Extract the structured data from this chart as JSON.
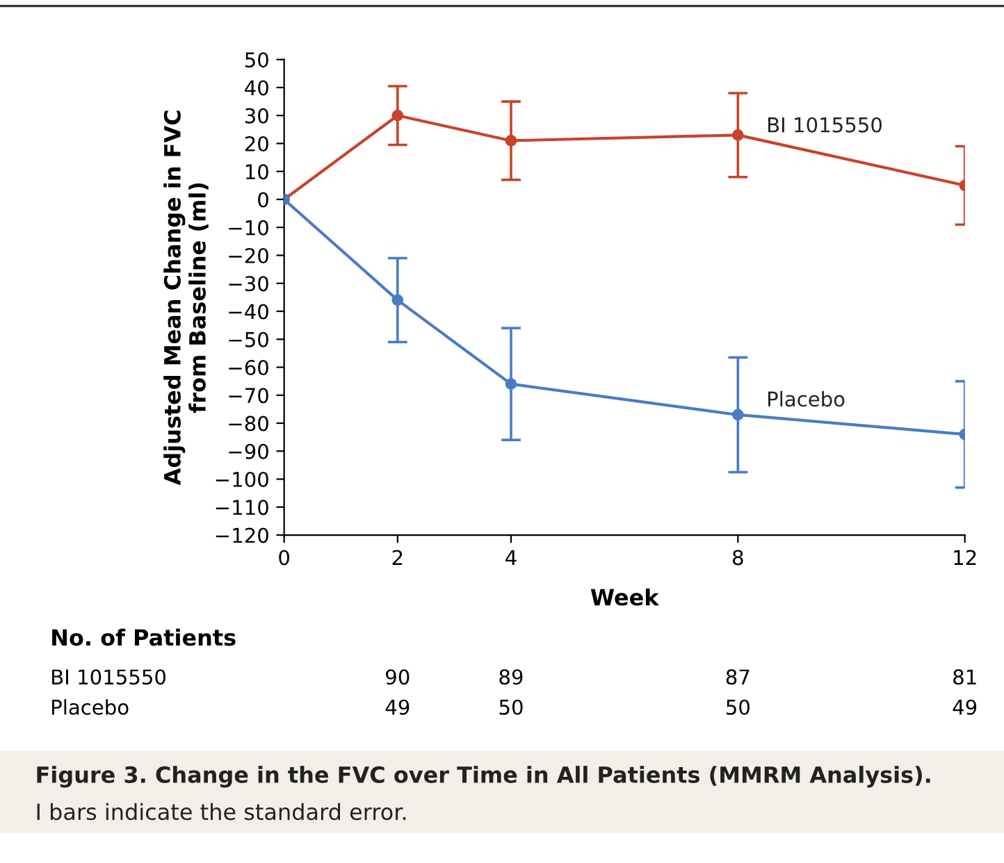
{
  "chart_data": {
    "type": "line",
    "title": "Figure 3. Change in the FVC over Time in All Patients (MMRM Analysis).",
    "xlabel": "Week",
    "ylabel": "Adjusted Mean Change in FVC\nfrom Baseline (ml)",
    "x": [
      0,
      2,
      4,
      8,
      12
    ],
    "series": [
      {
        "name": "BI 1015550",
        "color": "#c8432b",
        "values": [
          0,
          30,
          21,
          23,
          5
        ],
        "errors": [
          null,
          10.5,
          14,
          15,
          14
        ]
      },
      {
        "name": "Placebo",
        "color": "#4a7cc4",
        "values": [
          0,
          -36,
          -66,
          -77,
          -84
        ],
        "errors": [
          null,
          15,
          20,
          20.5,
          19
        ]
      }
    ],
    "xlim": [
      0,
      12
    ],
    "xticks": [
      0,
      2,
      4,
      8,
      12
    ],
    "ylim": [
      -120,
      50
    ],
    "yticks": [
      {
        "value": -120,
        "label": "−120"
      },
      {
        "value": -110,
        "label": "−110"
      },
      {
        "value": -100,
        "label": "−100"
      },
      {
        "value": -90,
        "label": "−90"
      },
      {
        "value": -80,
        "label": "−80"
      },
      {
        "value": -70,
        "label": "−70"
      },
      {
        "value": -60,
        "label": "−60"
      },
      {
        "value": -50,
        "label": "−50"
      },
      {
        "value": -40,
        "label": "−40"
      },
      {
        "value": -30,
        "label": "−30"
      },
      {
        "value": -20,
        "label": "−20"
      },
      {
        "value": -10,
        "label": "−10"
      },
      0,
      10,
      20,
      30,
      40,
      50
    ],
    "marker": "circle",
    "line_style": "solid",
    "grid": false,
    "legend": false,
    "annotations": [
      "No. of Patients",
      "BI 1015550",
      "90",
      "89",
      "87",
      "81",
      "Placebo",
      "49",
      "50",
      "50",
      "49",
      "I bars indicate the standard error."
    ]
  }
}
